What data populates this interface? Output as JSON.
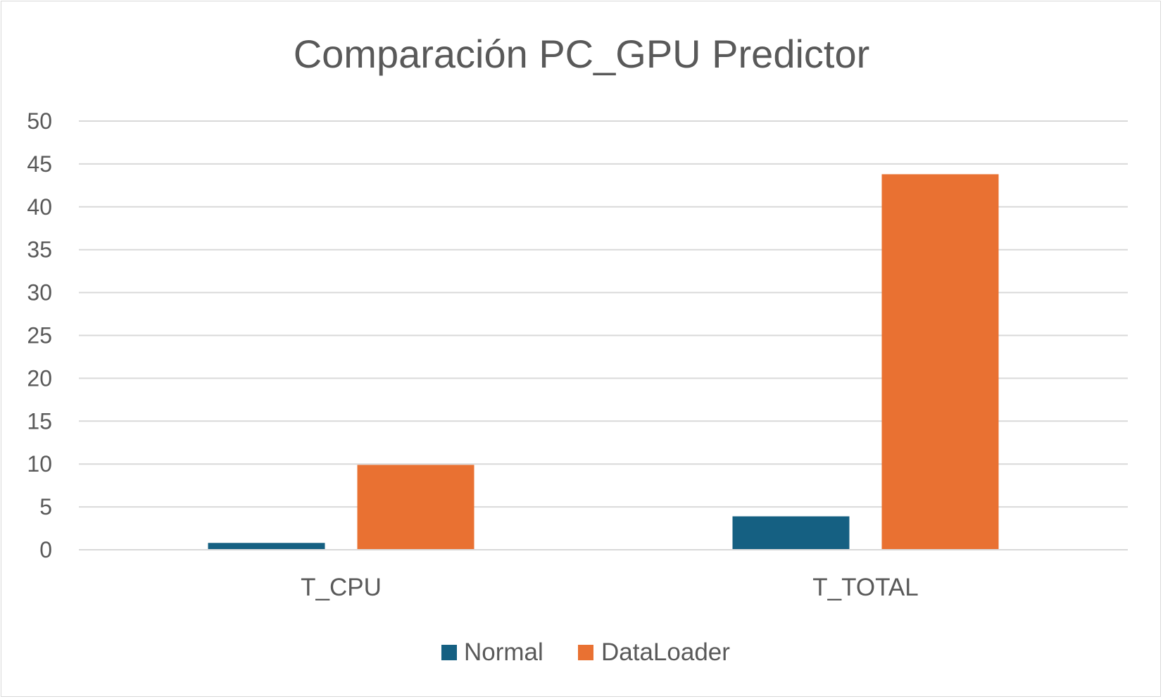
{
  "chart_data": {
    "type": "bar",
    "title": "Comparación PC_GPU Predictor",
    "categories": [
      "T_CPU",
      "T_TOTAL"
    ],
    "series": [
      {
        "name": "Normal",
        "color": "#156082",
        "values": [
          0.8,
          3.9
        ]
      },
      {
        "name": "DataLoader",
        "color": "#E97132",
        "values": [
          9.9,
          43.8
        ]
      }
    ],
    "ylim": [
      0,
      50
    ],
    "yticks": [
      0,
      5,
      10,
      15,
      20,
      25,
      30,
      35,
      40,
      45,
      50
    ],
    "grid": true,
    "legend_position": "bottom",
    "xlabel": "",
    "ylabel": ""
  }
}
